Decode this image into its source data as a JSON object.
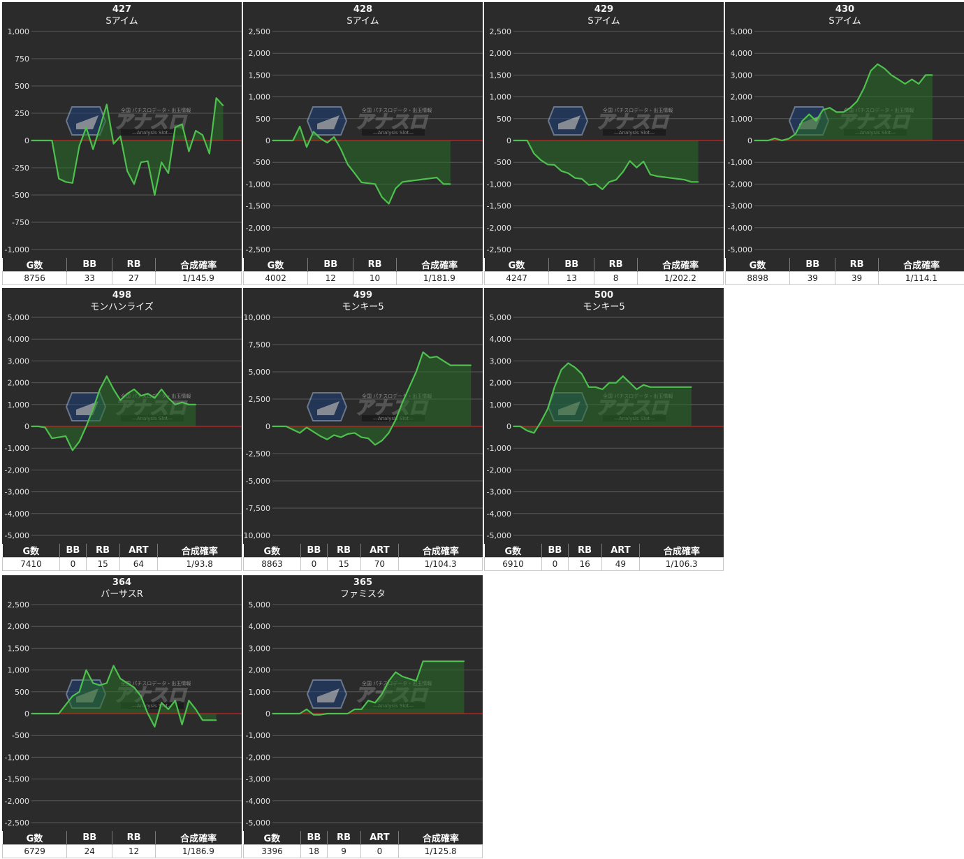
{
  "chart_data": [
    {
      "type": "area",
      "title": "427",
      "subtitle": "Sアイム",
      "ylim": [
        -1000,
        1000
      ],
      "yticks": [
        1000,
        750,
        500,
        250,
        0,
        -250,
        -500,
        -750,
        -1000
      ],
      "tick_labels": [
        "1,000",
        "750",
        "500",
        "250",
        "0",
        "-250",
        "-500",
        "-750",
        "-1,000"
      ],
      "values": [
        0,
        0,
        0,
        0,
        -350,
        -380,
        -390,
        -50,
        120,
        -80,
        120,
        330,
        -30,
        40,
        -280,
        -400,
        -200,
        -190,
        -500,
        -200,
        -300,
        120,
        150,
        -100,
        90,
        50,
        -120,
        390,
        320
      ],
      "stats": {
        "headers": [
          "G数",
          "BB",
          "RB",
          "合成確率"
        ],
        "values": [
          "8756",
          "33",
          "27",
          "1/145.9"
        ]
      }
    },
    {
      "type": "area",
      "title": "428",
      "subtitle": "Sアイム",
      "ylim": [
        -2500,
        2500
      ],
      "yticks": [
        2500,
        2000,
        1500,
        1000,
        500,
        0,
        -500,
        -1000,
        -1500,
        -2000,
        -2500
      ],
      "tick_labels": [
        "2,500",
        "2,000",
        "1,500",
        "1,000",
        "500",
        "0",
        "-500",
        "-1,000",
        "-1,500",
        "-2,000",
        "-2,500"
      ],
      "values": [
        0,
        0,
        0,
        0,
        320,
        -150,
        200,
        50,
        -50,
        80,
        -200,
        -550,
        -750,
        -960,
        -980,
        -1000,
        -1300,
        -1450,
        -1100,
        -950,
        -930,
        -910,
        -890,
        -870,
        -850,
        -1000,
        -1000
      ],
      "stats": {
        "headers": [
          "G数",
          "BB",
          "RB",
          "合成確率"
        ],
        "values": [
          "4002",
          "12",
          "10",
          "1/181.9"
        ]
      }
    },
    {
      "type": "area",
      "title": "429",
      "subtitle": "Sアイム",
      "ylim": [
        -2500,
        2500
      ],
      "yticks": [
        2500,
        2000,
        1500,
        1000,
        500,
        0,
        -500,
        -1000,
        -1500,
        -2000,
        -2500
      ],
      "tick_labels": [
        "2,500",
        "2,000",
        "1,500",
        "1,000",
        "500",
        "0",
        "-500",
        "-1,000",
        "-1,500",
        "-2,000",
        "-2,500"
      ],
      "values": [
        0,
        0,
        0,
        -300,
        -450,
        -550,
        -560,
        -700,
        -750,
        -860,
        -880,
        -1020,
        -1000,
        -1120,
        -950,
        -900,
        -720,
        -470,
        -620,
        -480,
        -780,
        -820,
        -840,
        -860,
        -880,
        -900,
        -950,
        -950
      ],
      "stats": {
        "headers": [
          "G数",
          "BB",
          "RB",
          "合成確率"
        ],
        "values": [
          "4247",
          "13",
          "8",
          "1/202.2"
        ]
      }
    },
    {
      "type": "area",
      "title": "430",
      "subtitle": "Sアイム",
      "ylim": [
        -5000,
        5000
      ],
      "yticks": [
        5000,
        4000,
        3000,
        2000,
        1000,
        0,
        -1000,
        -2000,
        -3000,
        -4000,
        -5000
      ],
      "tick_labels": [
        "5,000",
        "4,000",
        "3,000",
        "2,000",
        "1,000",
        "0",
        "-1,000",
        "-2,000",
        "-3,000",
        "-4,000",
        "-5,000"
      ],
      "values": [
        0,
        0,
        0,
        100,
        0,
        80,
        300,
        900,
        1200,
        900,
        1400,
        1500,
        1300,
        1300,
        1500,
        1800,
        2400,
        3200,
        3500,
        3300,
        3000,
        2800,
        2600,
        2800,
        2600,
        3000,
        3000
      ],
      "stats": {
        "headers": [
          "G数",
          "BB",
          "RB",
          "合成確率"
        ],
        "values": [
          "8898",
          "39",
          "39",
          "1/114.1"
        ]
      }
    },
    {
      "type": "area",
      "title": "498",
      "subtitle": "モンハンライズ",
      "ylim": [
        -5000,
        5000
      ],
      "yticks": [
        5000,
        4000,
        3000,
        2000,
        1000,
        0,
        -1000,
        -2000,
        -3000,
        -4000,
        -5000
      ],
      "tick_labels": [
        "5,000",
        "4,000",
        "3,000",
        "2,000",
        "1,000",
        "0",
        "-1,000",
        "-2,000",
        "-3,000",
        "-4,000",
        "-5,000"
      ],
      "values": [
        0,
        0,
        -50,
        -550,
        -500,
        -450,
        -1100,
        -700,
        0,
        800,
        1700,
        2300,
        1700,
        1200,
        1500,
        1700,
        1400,
        1500,
        1300,
        1700,
        1300,
        1000,
        1100,
        1000,
        1000
      ],
      "stats": {
        "headers": [
          "G数",
          "BB",
          "RB",
          "ART",
          "合成確率"
        ],
        "values": [
          "7410",
          "0",
          "15",
          "64",
          "1/93.8"
        ]
      }
    },
    {
      "type": "area",
      "title": "499",
      "subtitle": "モンキー5",
      "ylim": [
        -10000,
        10000
      ],
      "yticks": [
        10000,
        7500,
        5000,
        2500,
        0,
        -2500,
        -5000,
        -7500,
        -10000
      ],
      "tick_labels": [
        "10,000",
        "7,500",
        "5,000",
        "2,500",
        "0",
        "-2,500",
        "-5,000",
        "-7,500",
        "-10,000"
      ],
      "values": [
        0,
        0,
        0,
        -300,
        -600,
        -100,
        -500,
        -900,
        -1200,
        -800,
        -1000,
        -700,
        -600,
        -1000,
        -1100,
        -1700,
        -1300,
        -600,
        600,
        2200,
        3600,
        5000,
        6800,
        6300,
        6400,
        6000,
        5600,
        5600,
        5600,
        5600
      ],
      "stats": {
        "headers": [
          "G数",
          "BB",
          "RB",
          "ART",
          "合成確率"
        ],
        "values": [
          "8863",
          "0",
          "15",
          "70",
          "1/104.3"
        ]
      }
    },
    {
      "type": "area",
      "title": "500",
      "subtitle": "モンキー5",
      "ylim": [
        -5000,
        5000
      ],
      "yticks": [
        5000,
        4000,
        3000,
        2000,
        1000,
        0,
        -1000,
        -2000,
        -3000,
        -4000,
        -5000
      ],
      "tick_labels": [
        "5,000",
        "4,000",
        "3,000",
        "2,000",
        "1,000",
        "0",
        "-1,000",
        "-2,000",
        "-3,000",
        "-4,000",
        "-5,000"
      ],
      "values": [
        0,
        0,
        -200,
        -300,
        200,
        800,
        1800,
        2600,
        2900,
        2700,
        2400,
        1800,
        1800,
        1700,
        2000,
        2000,
        2300,
        2000,
        1700,
        1900,
        1800,
        1800,
        1800,
        1800,
        1800,
        1800,
        1800
      ],
      "stats": {
        "headers": [
          "G数",
          "BB",
          "RB",
          "ART",
          "合成確率"
        ],
        "values": [
          "6910",
          "0",
          "16",
          "49",
          "1/106.3"
        ]
      }
    },
    {
      "type": "area",
      "title": "364",
      "subtitle": "バーサスR",
      "ylim": [
        -2500,
        2500
      ],
      "yticks": [
        2500,
        2000,
        1500,
        1000,
        500,
        0,
        -500,
        -1000,
        -1500,
        -2000,
        -2500
      ],
      "tick_labels": [
        "2,500",
        "2,000",
        "1,500",
        "1,000",
        "500",
        "0",
        "-500",
        "-1,000",
        "-1,500",
        "-2,000",
        "-2,500"
      ],
      "values": [
        0,
        0,
        0,
        0,
        0,
        200,
        400,
        500,
        1000,
        700,
        650,
        700,
        1100,
        800,
        700,
        600,
        400,
        0,
        -300,
        250,
        100,
        300,
        -250,
        300,
        100,
        -150,
        -150,
        -150
      ],
      "stats": {
        "headers": [
          "G数",
          "BB",
          "RB",
          "合成確率"
        ],
        "values": [
          "6729",
          "24",
          "12",
          "1/186.9"
        ]
      }
    },
    {
      "type": "area",
      "title": "365",
      "subtitle": "ファミスタ",
      "ylim": [
        -5000,
        5000
      ],
      "yticks": [
        5000,
        4000,
        3000,
        2000,
        1000,
        0,
        -1000,
        -2000,
        -3000,
        -4000,
        -5000
      ],
      "tick_labels": [
        "5,000",
        "4,000",
        "3,000",
        "2,000",
        "1,000",
        "0",
        "-1,000",
        "-2,000",
        "-3,000",
        "-4,000",
        "-5,000"
      ],
      "values": [
        0,
        0,
        0,
        0,
        0,
        200,
        -50,
        -50,
        0,
        0,
        0,
        0,
        200,
        200,
        600,
        500,
        900,
        1500,
        1900,
        1700,
        1600,
        1500,
        2400,
        2400,
        2400,
        2400,
        2400,
        2400,
        2400
      ],
      "stats": {
        "headers": [
          "G数",
          "BB",
          "RB",
          "ART",
          "合成確率"
        ],
        "values": [
          "3396",
          "18",
          "9",
          "0",
          "1/125.8"
        ]
      }
    }
  ],
  "colors": {
    "panel_bg": "#2b2b2b",
    "line": "#4fc04f",
    "fill": "rgba(40,110,40,0.55)",
    "zero_line": "#cc2222",
    "grid": "#5a5a5a",
    "text": "#e0e0e0"
  },
  "watermark": {
    "icon": "hexagon-logo",
    "text": "アナスロ",
    "tagline": "Analysis Slot",
    "caption": "全国 パチスロデータ・出玉情報"
  }
}
